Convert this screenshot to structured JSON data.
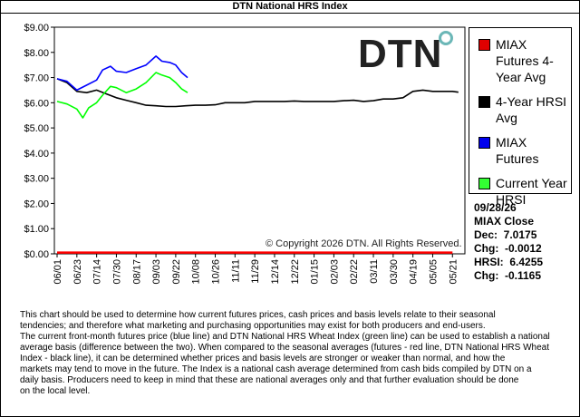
{
  "chart_data": {
    "type": "line",
    "title": "DTN National HRS Index",
    "ylim": [
      0,
      9
    ],
    "y_ticks": [
      "$0.00",
      "$1.00",
      "$2.00",
      "$3.00",
      "$4.00",
      "$5.00",
      "$6.00",
      "$7.00",
      "$8.00",
      "$9.00"
    ],
    "x_ticks": [
      "06/01",
      "06/23",
      "07/14",
      "07/30",
      "08/17",
      "09/03",
      "09/22",
      "10/08",
      "10/26",
      "11/11",
      "11/29",
      "12/14",
      "12/22",
      "01/15",
      "02/03",
      "02/22",
      "03/11",
      "03/30",
      "04/19",
      "05/05",
      "05/21"
    ],
    "series": [
      {
        "name": "MIAX Futures 4-Year Avg",
        "color": "#ff0000",
        "points": [
          [
            0,
            0.05
          ],
          [
            20,
            0.05
          ]
        ]
      },
      {
        "name": "4-Year HRSI Avg",
        "color": "#000000",
        "points": [
          [
            0,
            6.95
          ],
          [
            0.5,
            6.8
          ],
          [
            1,
            6.45
          ],
          [
            1.5,
            6.4
          ],
          [
            2,
            6.5
          ],
          [
            2.5,
            6.35
          ],
          [
            3,
            6.2
          ],
          [
            3.5,
            6.1
          ],
          [
            4,
            6.0
          ],
          [
            4.5,
            5.9
          ],
          [
            5,
            5.88
          ],
          [
            5.5,
            5.85
          ],
          [
            6,
            5.85
          ],
          [
            6.5,
            5.88
          ],
          [
            7,
            5.9
          ],
          [
            7.5,
            5.9
          ],
          [
            8,
            5.92
          ],
          [
            8.5,
            6.0
          ],
          [
            9,
            6.0
          ],
          [
            9.5,
            6.0
          ],
          [
            10,
            6.05
          ],
          [
            10.5,
            6.05
          ],
          [
            11,
            6.05
          ],
          [
            11.5,
            6.05
          ],
          [
            12,
            6.07
          ],
          [
            12.5,
            6.05
          ],
          [
            13,
            6.05
          ],
          [
            13.5,
            6.05
          ],
          [
            14,
            6.05
          ],
          [
            14.5,
            6.08
          ],
          [
            15,
            6.1
          ],
          [
            15.5,
            6.05
          ],
          [
            16,
            6.08
          ],
          [
            16.5,
            6.15
          ],
          [
            17,
            6.15
          ],
          [
            17.5,
            6.2
          ],
          [
            18,
            6.45
          ],
          [
            18.5,
            6.5
          ],
          [
            19,
            6.45
          ],
          [
            19.5,
            6.45
          ],
          [
            20,
            6.45
          ],
          [
            20.3,
            6.42
          ]
        ]
      },
      {
        "name": "MIAX Futures",
        "color": "#0000ff",
        "points": [
          [
            0,
            6.95
          ],
          [
            0.5,
            6.85
          ],
          [
            1,
            6.5
          ],
          [
            1.5,
            6.7
          ],
          [
            2,
            6.9
          ],
          [
            2.3,
            7.3
          ],
          [
            2.7,
            7.45
          ],
          [
            3,
            7.25
          ],
          [
            3.5,
            7.2
          ],
          [
            4,
            7.35
          ],
          [
            4.5,
            7.5
          ],
          [
            5,
            7.85
          ],
          [
            5.3,
            7.65
          ],
          [
            5.7,
            7.6
          ],
          [
            6,
            7.5
          ],
          [
            6.3,
            7.2
          ],
          [
            6.6,
            7.0
          ]
        ]
      },
      {
        "name": "Current Year HRSI",
        "color": "#00ff00",
        "points": [
          [
            0,
            6.05
          ],
          [
            0.5,
            5.95
          ],
          [
            1,
            5.75
          ],
          [
            1.3,
            5.4
          ],
          [
            1.6,
            5.8
          ],
          [
            2,
            6.0
          ],
          [
            2.3,
            6.3
          ],
          [
            2.7,
            6.65
          ],
          [
            3,
            6.6
          ],
          [
            3.5,
            6.4
          ],
          [
            4,
            6.55
          ],
          [
            4.5,
            6.8
          ],
          [
            5,
            7.2
          ],
          [
            5.3,
            7.1
          ],
          [
            5.7,
            7.0
          ],
          [
            6,
            6.8
          ],
          [
            6.3,
            6.55
          ],
          [
            6.6,
            6.4
          ]
        ]
      }
    ],
    "legend": [
      "MIAX Futures 4-Year Avg",
      "4-Year HRSI Avg",
      "MIAX Futures",
      "Current Year HRSI"
    ],
    "legend_position": "right",
    "grid": false
  },
  "legend_items": [
    {
      "label": "MIAX Futures 4-Year Avg",
      "color": "#e00000"
    },
    {
      "label": "4-Year HRSI Avg",
      "color": "#000000"
    },
    {
      "label": "MIAX Futures",
      "color": "#0000ee"
    },
    {
      "label": "Current Year HRSI",
      "color": "#33ff33"
    }
  ],
  "close_info": {
    "date": "09/28/26",
    "heading": "MIAX Close",
    "dec": "Dec:  7.0175",
    "chg": "Chg:  -0.0012",
    "hrsi": "HRSI:  6.4255",
    "hrsi_chg": "Chg:  -0.1165"
  },
  "logo_text": "DTN",
  "copyright": "© Copyright 2026 DTN. All Rights Reserved.",
  "description": [
    "This chart should be used to determine how current futures prices, cash prices and basis levels relate to their seasonal",
    "tendencies; and therefore what marketing and purchasing opportunities may exist for both producers and end-users.",
    "The current front-month futures price (blue line) and DTN National HRS Wheat Index (green line) can be used to establish a national",
    "average basis (difference between the two).  When compared to the seasonal averages (futures - red line, DTN National HRS Wheat",
    "Index - black line), it can be determined whether prices and basis levels are stronger or weaker than normal, and how the",
    "markets may tend to move in the future.  The Index is a national cash average determined from cash bids compiled by DTN on a",
    "daily basis.  Producers need to keep in mind that these are national averages only and that further evaluation should be done",
    "on the local level."
  ]
}
